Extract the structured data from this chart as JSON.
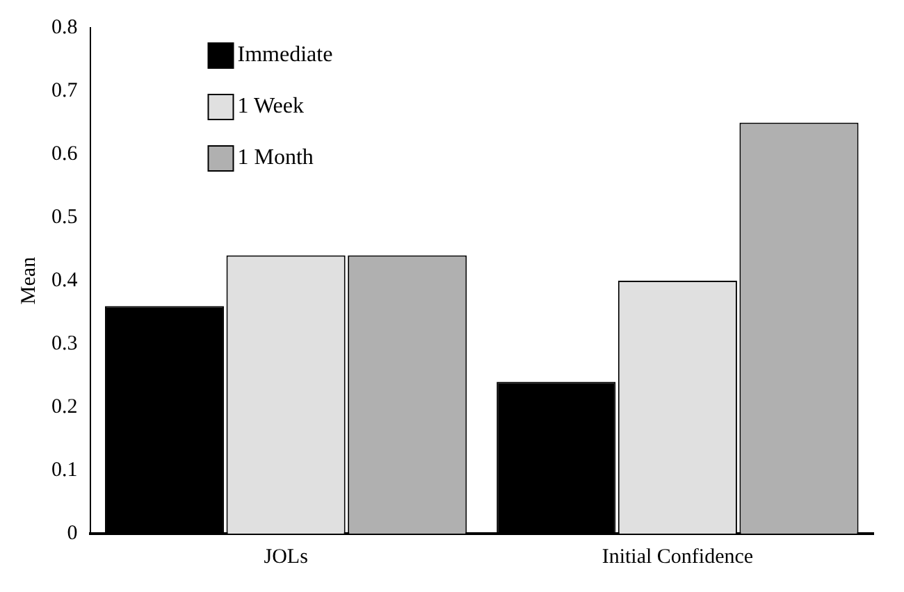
{
  "chart_data": {
    "type": "bar",
    "ylabel": "Mean",
    "categories": [
      "JOLs",
      "Initial Confidence"
    ],
    "series": [
      {
        "name": "Immediate",
        "color": "#000000",
        "values": [
          0.36,
          0.24
        ]
      },
      {
        "name": "1 Week",
        "color": "#e0e0e0",
        "values": [
          0.44,
          0.4
        ]
      },
      {
        "name": "1 Month",
        "color": "#b0b0b0",
        "values": [
          0.44,
          0.65
        ]
      }
    ],
    "ylim": [
      0,
      0.8
    ],
    "yticks": [
      0,
      0.1,
      0.2,
      0.3,
      0.4,
      0.5,
      0.6,
      0.7,
      0.8
    ],
    "grid": false,
    "legend": "top left"
  }
}
